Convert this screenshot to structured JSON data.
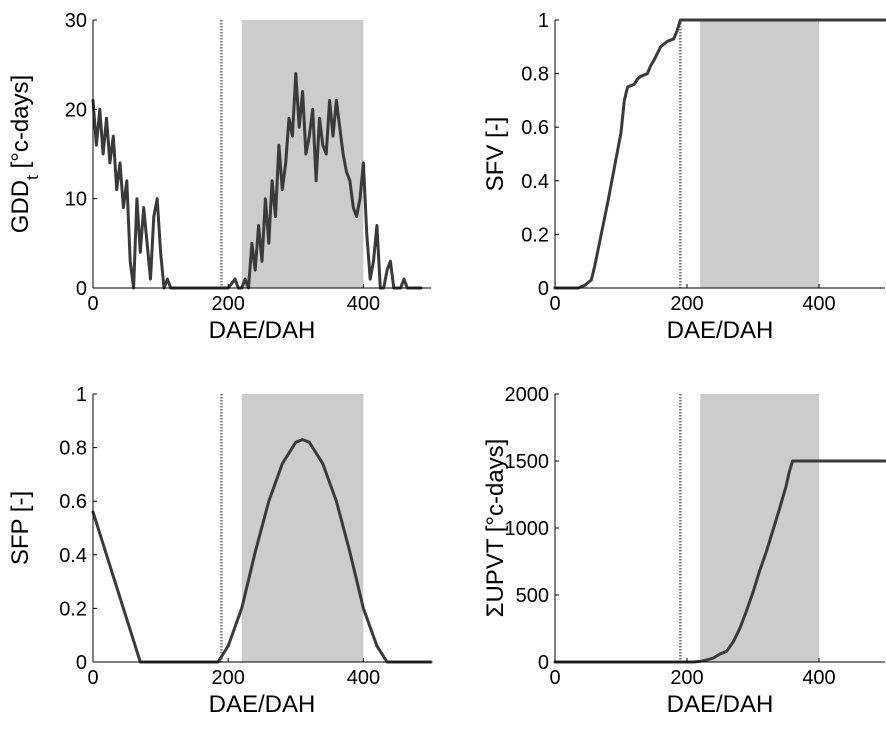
{
  "chart_data": [
    {
      "type": "line",
      "ylabel": "GDD",
      "ylabel_sub": "t",
      "ylabel_rest": " [°c-days]",
      "xlabel": "DAE/DAH",
      "xlim": [
        0,
        500
      ],
      "ylim": [
        0,
        30
      ],
      "xticks": [
        "0",
        "200",
        "400"
      ],
      "yticks": [
        "0",
        "10",
        "20",
        "30"
      ],
      "shaded_region": [
        220,
        400
      ],
      "dotted_vline": 190,
      "series_color": "#3a3a3a",
      "series": [
        {
          "x": [
            0,
            5,
            10,
            15,
            20,
            25,
            30,
            35,
            40,
            45,
            50,
            55,
            60,
            65,
            70,
            75,
            80,
            85,
            90,
            95,
            100,
            105,
            110,
            115,
            120,
            125,
            130,
            135,
            140,
            180,
            190,
            200,
            210,
            215,
            220,
            225,
            230,
            235,
            240,
            245,
            250,
            255,
            260,
            265,
            270,
            275,
            280,
            285,
            290,
            295,
            300,
            305,
            310,
            315,
            320,
            325,
            330,
            335,
            340,
            345,
            350,
            355,
            360,
            365,
            370,
            375,
            380,
            385,
            390,
            395,
            400,
            405,
            410,
            415,
            420,
            425,
            430,
            435,
            440,
            445,
            450,
            455,
            460,
            465,
            470,
            475,
            480,
            485
          ],
          "y": [
            21,
            16,
            20,
            15,
            19,
            14,
            17,
            11,
            14,
            9,
            12,
            3,
            0,
            10,
            4,
            9,
            5,
            1,
            8,
            10,
            4,
            0,
            1,
            0,
            0,
            0,
            0,
            0,
            0,
            0,
            0,
            0,
            1,
            0,
            0,
            1,
            0,
            5,
            2,
            7,
            3,
            10,
            5,
            12,
            8,
            16,
            11,
            14,
            19,
            17,
            24,
            18,
            22,
            15,
            17,
            20,
            12,
            19,
            16,
            15,
            21,
            17,
            21,
            18,
            15,
            13,
            12,
            9,
            8,
            10,
            14,
            6,
            1,
            3,
            7,
            0,
            0,
            2,
            3,
            0,
            0,
            0,
            1,
            0,
            0,
            0,
            0,
            0
          ]
        }
      ]
    },
    {
      "type": "line",
      "ylabel": "SFV [-]",
      "xlabel": "DAE/DAH",
      "xlim": [
        0,
        500
      ],
      "ylim": [
        0,
        1
      ],
      "xticks": [
        "0",
        "200",
        "400"
      ],
      "yticks": [
        "0",
        "0.2",
        "0.4",
        "0.6",
        "0.8",
        "1"
      ],
      "shaded_region": [
        220,
        400
      ],
      "dotted_vline": 190,
      "series_color": "#3a3a3a",
      "series": [
        {
          "x": [
            0,
            35,
            45,
            50,
            55,
            60,
            70,
            80,
            90,
            100,
            105,
            110,
            120,
            125,
            130,
            140,
            145,
            150,
            160,
            165,
            170,
            180,
            185,
            190,
            200,
            500
          ],
          "y": [
            0,
            0,
            0.01,
            0.02,
            0.03,
            0.08,
            0.2,
            0.32,
            0.45,
            0.58,
            0.7,
            0.75,
            0.76,
            0.78,
            0.79,
            0.8,
            0.83,
            0.85,
            0.9,
            0.91,
            0.92,
            0.93,
            0.96,
            1.0,
            1.0,
            1.0
          ]
        }
      ]
    },
    {
      "type": "line",
      "ylabel": "SFP [-]",
      "xlabel": "DAE/DAH",
      "xlim": [
        0,
        500
      ],
      "ylim": [
        0,
        1
      ],
      "xticks": [
        "0",
        "200",
        "400"
      ],
      "yticks": [
        "0",
        "0.2",
        "0.4",
        "0.6",
        "0.8",
        "1"
      ],
      "shaded_region": [
        220,
        400
      ],
      "dotted_vline": 190,
      "series_color": "#3a3a3a",
      "series": [
        {
          "x": [
            0,
            70,
            185,
            200,
            220,
            240,
            260,
            280,
            300,
            310,
            320,
            340,
            360,
            380,
            400,
            420,
            435,
            500
          ],
          "y": [
            0.56,
            0,
            0,
            0.06,
            0.2,
            0.41,
            0.6,
            0.74,
            0.82,
            0.83,
            0.82,
            0.74,
            0.6,
            0.41,
            0.2,
            0.06,
            0,
            0
          ]
        }
      ]
    },
    {
      "type": "line",
      "ylabel": "ΣUPVT [°c-days]",
      "xlabel": "DAE/DAH",
      "xlim": [
        0,
        500
      ],
      "ylim": [
        0,
        2000
      ],
      "xticks": [
        "0",
        "200",
        "400"
      ],
      "yticks": [
        "0",
        "500",
        "1000",
        "1500",
        "2000"
      ],
      "shaded_region": [
        220,
        400
      ],
      "dotted_vline": 190,
      "series_color": "#3a3a3a",
      "series": [
        {
          "x": [
            0,
            210,
            220,
            230,
            240,
            250,
            260,
            270,
            280,
            290,
            300,
            310,
            320,
            330,
            340,
            350,
            355,
            360,
            500
          ],
          "y": [
            0,
            0,
            5,
            15,
            30,
            60,
            80,
            150,
            250,
            380,
            520,
            680,
            820,
            980,
            1140,
            1310,
            1420,
            1500,
            1500
          ]
        }
      ]
    }
  ]
}
